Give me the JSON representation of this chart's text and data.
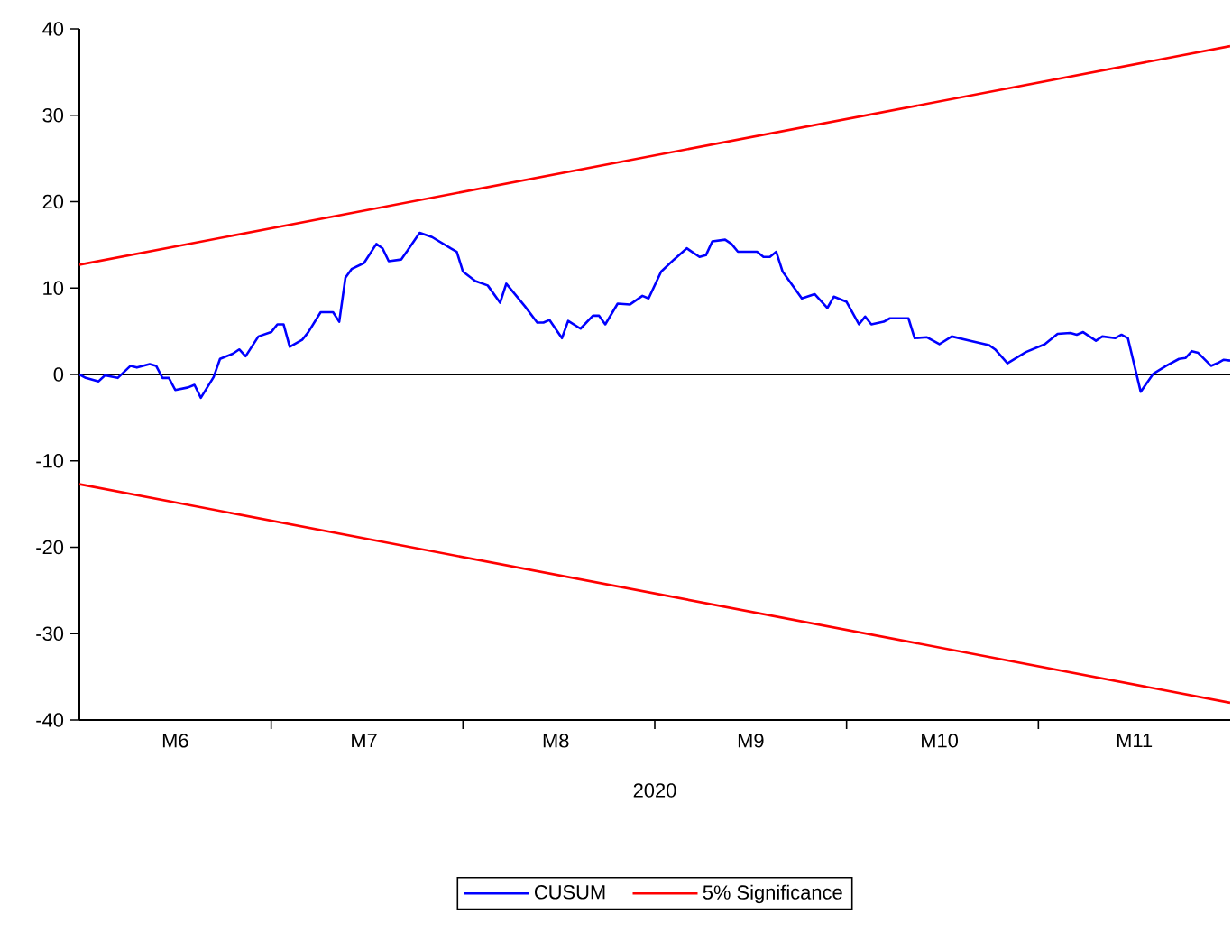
{
  "chart_data": {
    "type": "line",
    "xlabel": "2020",
    "xlim": [
      "2020-06-01",
      "2020-12-01"
    ],
    "ylim": [
      -40,
      40
    ],
    "xticks": [
      {
        "value": "2020-07-01",
        "label": null
      },
      {
        "value": "2020-08-01",
        "label": null
      },
      {
        "value": "2020-09-01",
        "label": null
      },
      {
        "value": "2020-10-01",
        "label": null
      },
      {
        "value": "2020-11-01",
        "label": null
      },
      {
        "value": "2020-06-16",
        "label": "M6"
      },
      {
        "value": "2020-07-16",
        "label": "M7"
      },
      {
        "value": "2020-08-16",
        "label": "M8"
      },
      {
        "value": "2020-09-16",
        "label": "M9"
      },
      {
        "value": "2020-10-16",
        "label": "M10"
      },
      {
        "value": "2020-11-16",
        "label": "M11"
      }
    ],
    "yticks": [
      -40,
      -30,
      -20,
      -10,
      0,
      10,
      20,
      30,
      40
    ],
    "series": [
      {
        "name": "CUSUM",
        "color": "#0000ff",
        "x": [
          "2020-06-01",
          "2020-06-02",
          "2020-06-04",
          "2020-06-05",
          "2020-06-07",
          "2020-06-09",
          "2020-06-10",
          "2020-06-12",
          "2020-06-13",
          "2020-06-14",
          "2020-06-15",
          "2020-06-16",
          "2020-06-18",
          "2020-06-19",
          "2020-06-20",
          "2020-06-22",
          "2020-06-23",
          "2020-06-25",
          "2020-06-26",
          "2020-06-27",
          "2020-06-29",
          "2020-07-01",
          "2020-07-02",
          "2020-07-03",
          "2020-07-04",
          "2020-07-06",
          "2020-07-07",
          "2020-07-09",
          "2020-07-11",
          "2020-07-12",
          "2020-07-13",
          "2020-07-14",
          "2020-07-16",
          "2020-07-18",
          "2020-07-19",
          "2020-07-20",
          "2020-07-22",
          "2020-07-23",
          "2020-07-25",
          "2020-07-27",
          "2020-07-30",
          "2020-07-31",
          "2020-08-01",
          "2020-08-03",
          "2020-08-05",
          "2020-08-07",
          "2020-08-08",
          "2020-08-11",
          "2020-08-13",
          "2020-08-14",
          "2020-08-15",
          "2020-08-17",
          "2020-08-18",
          "2020-08-20",
          "2020-08-22",
          "2020-08-23",
          "2020-08-24",
          "2020-08-26",
          "2020-08-28",
          "2020-08-30",
          "2020-08-31",
          "2020-09-02",
          "2020-09-04",
          "2020-09-06",
          "2020-09-08",
          "2020-09-09",
          "2020-09-10",
          "2020-09-12",
          "2020-09-13",
          "2020-09-14",
          "2020-09-17",
          "2020-09-18",
          "2020-09-19",
          "2020-09-20",
          "2020-09-21",
          "2020-09-24",
          "2020-09-26",
          "2020-09-28",
          "2020-09-29",
          "2020-10-01",
          "2020-10-03",
          "2020-10-04",
          "2020-10-05",
          "2020-10-07",
          "2020-10-08",
          "2020-10-10",
          "2020-10-11",
          "2020-10-12",
          "2020-10-14",
          "2020-10-16",
          "2020-10-18",
          "2020-10-21",
          "2020-10-24",
          "2020-10-25",
          "2020-10-27",
          "2020-10-30",
          "2020-11-02",
          "2020-11-04",
          "2020-11-06",
          "2020-11-07",
          "2020-11-08",
          "2020-11-10",
          "2020-11-11",
          "2020-11-13",
          "2020-11-14",
          "2020-11-15",
          "2020-11-17",
          "2020-11-19",
          "2020-11-21",
          "2020-11-23",
          "2020-11-24",
          "2020-11-25",
          "2020-11-26",
          "2020-11-28",
          "2020-11-29",
          "2020-11-30",
          "2020-12-01"
        ],
        "values": [
          0.0,
          -0.4,
          -0.8,
          -0.1,
          -0.4,
          1.0,
          0.8,
          1.2,
          1.0,
          -0.4,
          -0.4,
          -1.8,
          -1.5,
          -1.2,
          -2.7,
          -0.3,
          1.8,
          2.4,
          2.9,
          2.1,
          4.4,
          4.9,
          5.8,
          5.8,
          3.2,
          4.0,
          4.9,
          7.2,
          7.2,
          6.1,
          11.2,
          12.2,
          12.9,
          15.1,
          14.6,
          13.1,
          13.3,
          14.3,
          16.4,
          15.9,
          14.6,
          14.2,
          11.9,
          10.8,
          10.3,
          8.3,
          10.5,
          7.9,
          6.0,
          6.0,
          6.3,
          4.2,
          6.2,
          5.3,
          6.8,
          6.8,
          5.8,
          8.2,
          8.1,
          9.1,
          8.8,
          11.9,
          13.3,
          14.6,
          13.6,
          13.8,
          15.4,
          15.6,
          15.1,
          14.2,
          14.2,
          13.6,
          13.6,
          14.2,
          11.9,
          8.8,
          9.3,
          7.7,
          9.0,
          8.4,
          5.8,
          6.7,
          5.8,
          6.1,
          6.5,
          6.5,
          6.5,
          4.2,
          4.3,
          3.5,
          4.4,
          3.9,
          3.4,
          2.9,
          1.3,
          2.6,
          3.5,
          4.7,
          4.8,
          4.6,
          4.9,
          3.9,
          4.4,
          4.2,
          4.6,
          4.2,
          -2.0,
          0.1,
          1.0,
          1.8,
          1.9,
          2.7,
          2.5,
          1.0,
          1.3,
          1.7,
          1.6
        ]
      },
      {
        "name": "5% Significance",
        "color": "#ff0000",
        "x": [
          "2020-06-01",
          "2020-12-01"
        ],
        "values": [
          12.7,
          38
        ]
      },
      {
        "color": "#ff0000",
        "x": [
          "2020-06-01",
          "2020-12-01"
        ],
        "values": [
          -12.7,
          -38
        ]
      }
    ],
    "ref_lines": [
      {
        "axis": "y",
        "value": 0,
        "color": "#000000"
      }
    ],
    "legend": "bottom",
    "line_style": "solid",
    "marker": "none"
  }
}
